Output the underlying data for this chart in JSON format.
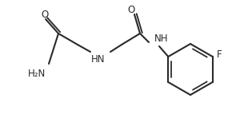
{
  "background": "#ffffff",
  "line_color": "#2a2a2a",
  "text_color": "#2a2a2a",
  "lw": 1.5,
  "fontsize": 8.5,
  "figsize": [
    2.9,
    1.58
  ],
  "dpi": 100,
  "xlim": [
    0,
    290
  ],
  "ylim": [
    0,
    158
  ]
}
